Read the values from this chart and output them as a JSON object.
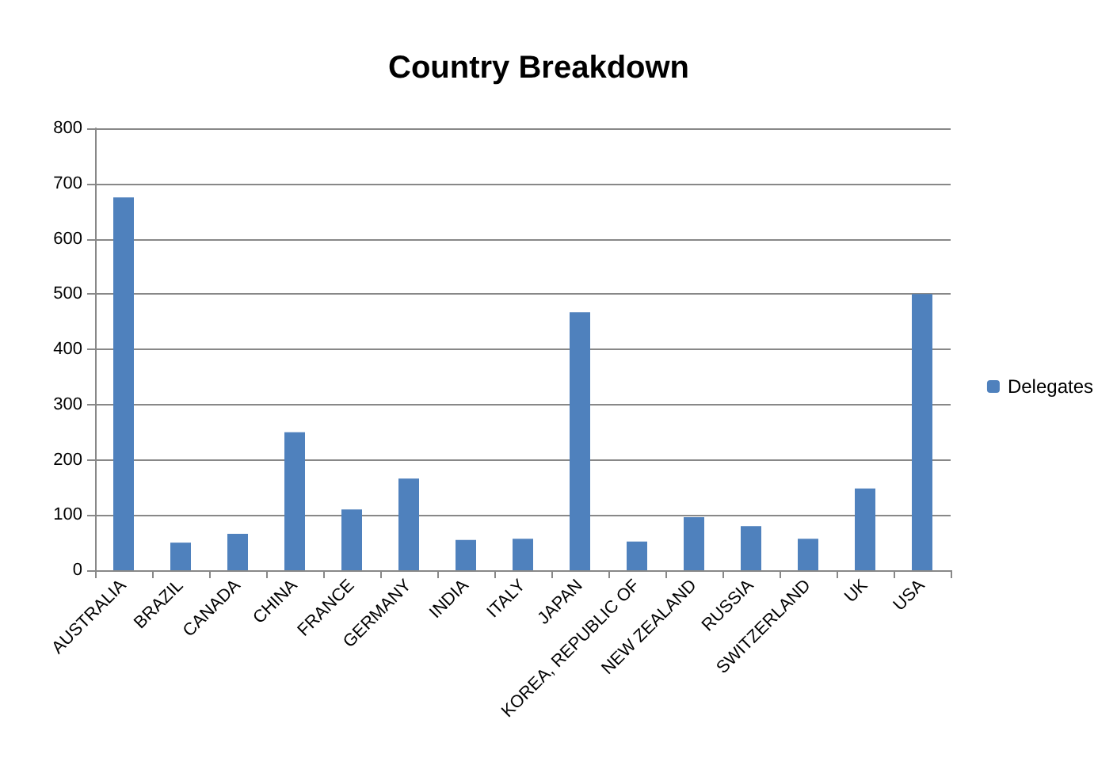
{
  "chart_data": {
    "type": "bar",
    "title": "Country Breakdown",
    "categories": [
      "AUSTRALIA",
      "BRAZIL",
      "CANADA",
      "CHINA",
      "FRANCE",
      "GERMANY",
      "INDIA",
      "ITALY",
      "JAPAN",
      "KOREA, REPUBLIC OF",
      "NEW ZEALAND",
      "RUSSIA",
      "SWITZERLAND",
      "UK",
      "USA"
    ],
    "series": [
      {
        "name": "Delegates",
        "color": "#4f81bd",
        "values": [
          675,
          50,
          66,
          250,
          110,
          166,
          55,
          57,
          467,
          52,
          96,
          80,
          57,
          148,
          500
        ]
      }
    ],
    "ylim": [
      0,
      800
    ],
    "yticks": [
      0,
      100,
      200,
      300,
      400,
      500,
      600,
      700,
      800
    ],
    "grid": "y",
    "legend": "right"
  }
}
